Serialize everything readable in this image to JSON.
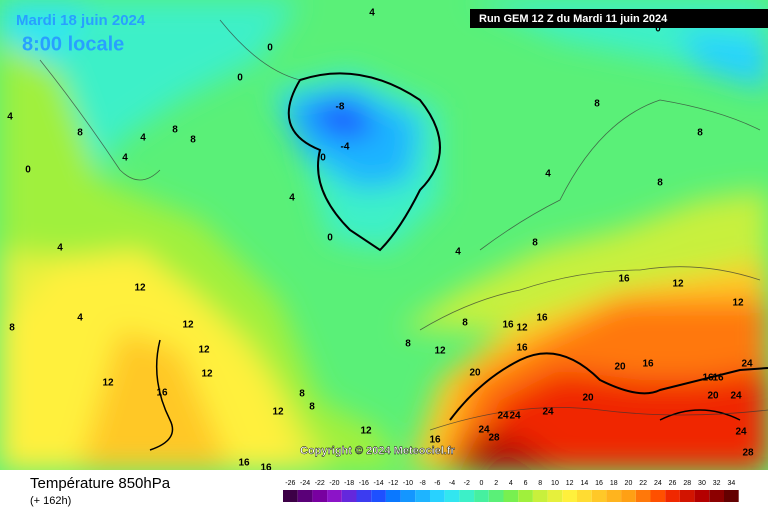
{
  "header": {
    "date": "Mardi 18 juin 2024",
    "time": "8:00 locale",
    "run": "Run GEM 12 Z du Mardi 11 juin 2024"
  },
  "map": {
    "copyright": "Copyright © 2024 Meteociel.fr",
    "contour_labels": [
      4,
      0,
      0,
      4,
      8,
      4,
      4,
      8,
      8,
      0,
      4,
      4,
      -8,
      -4,
      0,
      0,
      4,
      8,
      8,
      8,
      4,
      8,
      12,
      12,
      12,
      12,
      12,
      16,
      4,
      8,
      16,
      12,
      12,
      8,
      8,
      12,
      16,
      12,
      16,
      16,
      20,
      16,
      20,
      20,
      20,
      24,
      24,
      24,
      24,
      24,
      28,
      24,
      28,
      16,
      16,
      16,
      8,
      8,
      12,
      12,
      0,
      24,
      16,
      16
    ]
  },
  "footer": {
    "variable": "Température 850hPa",
    "lead": "(+ 162h)"
  },
  "scale": {
    "values": [
      -26,
      -24,
      -22,
      -20,
      -18,
      -16,
      -14,
      -12,
      -10,
      -8,
      -6,
      -4,
      -2,
      0,
      2,
      4,
      6,
      8,
      10,
      12,
      14,
      16,
      18,
      20,
      22,
      24,
      26,
      28,
      30,
      32,
      34
    ],
    "colors": [
      "#3c0046",
      "#5a0078",
      "#7800a0",
      "#8c14c8",
      "#6428dc",
      "#3c3cf0",
      "#1e50ff",
      "#0a78ff",
      "#1496ff",
      "#1eb4ff",
      "#28d2ff",
      "#32e6f0",
      "#3cf0c8",
      "#46f0a0",
      "#5af078",
      "#78f050",
      "#a0f03c",
      "#c8f03c",
      "#e6f03c",
      "#fff03c",
      "#ffdc32",
      "#ffc828",
      "#ffb41e",
      "#ffa014",
      "#ff780a",
      "#ff5000",
      "#f02800",
      "#d21400",
      "#b40000",
      "#8c0000",
      "#640000"
    ]
  }
}
